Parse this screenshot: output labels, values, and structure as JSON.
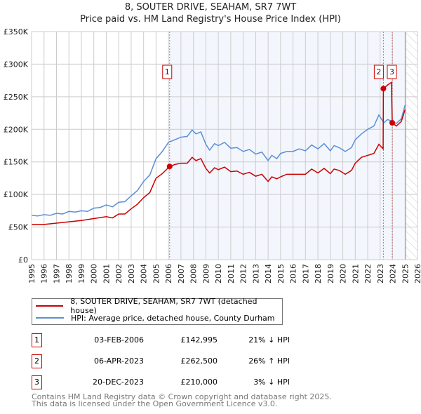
{
  "chart_data": {
    "type": "line",
    "title": "8, SOUTER DRIVE, SEAHAM, SR7 7WT",
    "subtitle": "Price paid vs. HM Land Registry's House Price Index (HPI)",
    "xlim": [
      1995,
      2026
    ],
    "ylim": [
      0,
      350000
    ],
    "x_ticks": [
      "1995",
      "1996",
      "1997",
      "1998",
      "1999",
      "2000",
      "2001",
      "2002",
      "2003",
      "2004",
      "2005",
      "2006",
      "2007",
      "2008",
      "2009",
      "2010",
      "2011",
      "2012",
      "2013",
      "2014",
      "2015",
      "2016",
      "2017",
      "2018",
      "2019",
      "2020",
      "2021",
      "2022",
      "2023",
      "2024",
      "2025",
      "2026"
    ],
    "y_ticks": [
      {
        "v": 0,
        "label": "£0"
      },
      {
        "v": 50000,
        "label": "£50K"
      },
      {
        "v": 100000,
        "label": "£100K"
      },
      {
        "v": 150000,
        "label": "£150K"
      },
      {
        "v": 200000,
        "label": "£200K"
      },
      {
        "v": 250000,
        "label": "£250K"
      },
      {
        "v": 300000,
        "label": "£300K"
      },
      {
        "v": 350000,
        "label": "£350K"
      }
    ],
    "grid": true,
    "shaded_from": 2006.09,
    "forecast_from": 2025.05,
    "series": [
      {
        "name": "8, SOUTER DRIVE, SEAHAM, SR7 7WT (detached house)",
        "color": "#cc0000",
        "x": [
          1995,
          1996,
          1997,
          1998,
          1999,
          2000,
          2001,
          2001.5,
          2002,
          2002.5,
          2003,
          2003.5,
          2004,
          2004.5,
          2005,
          2005.5,
          2006.09,
          2006.5,
          2007,
          2007.5,
          2007.9,
          2008.2,
          2008.6,
          2009,
          2009.3,
          2009.7,
          2010,
          2010.5,
          2011,
          2011.5,
          2012,
          2012.5,
          2013,
          2013.5,
          2014,
          2014.3,
          2014.7,
          2015,
          2015.5,
          2016,
          2016.5,
          2017,
          2017.5,
          2018,
          2018.5,
          2019,
          2019.3,
          2019.7,
          2020.2,
          2020.7,
          2021,
          2021.5,
          2022,
          2022.5,
          2022.9,
          2023.24,
          2023.26,
          2023.6,
          2023.9,
          2023.97,
          2024.3,
          2024.7,
          2025
        ],
        "y": [
          54000,
          54000,
          56000,
          58000,
          60000,
          63000,
          66000,
          64000,
          70000,
          70000,
          78000,
          85000,
          95000,
          103000,
          125000,
          132000,
          142995,
          146000,
          148000,
          148000,
          157000,
          152000,
          155000,
          140000,
          133000,
          141000,
          138000,
          142000,
          135000,
          136000,
          131000,
          134000,
          128000,
          131000,
          120000,
          127000,
          124000,
          127000,
          131000,
          131000,
          131000,
          131000,
          139000,
          133000,
          140000,
          132000,
          139000,
          137000,
          131000,
          137000,
          148000,
          157000,
          160000,
          163000,
          177000,
          170000,
          262500,
          268000,
          272000,
          210000,
          205000,
          212000,
          230000
        ]
      },
      {
        "name": "HPI: Average price, detached house, County Durham",
        "color": "#5b8fd4",
        "x": [
          1995,
          1995.5,
          1996,
          1996.5,
          1997,
          1997.5,
          1998,
          1998.5,
          1999,
          1999.5,
          2000,
          2000.5,
          2001,
          2001.5,
          2002,
          2002.5,
          2003,
          2003.5,
          2004,
          2004.5,
          2005,
          2005.5,
          2006,
          2006.5,
          2007,
          2007.5,
          2007.9,
          2008.2,
          2008.6,
          2009,
          2009.3,
          2009.7,
          2010,
          2010.5,
          2011,
          2011.5,
          2012,
          2012.5,
          2013,
          2013.5,
          2014,
          2014.3,
          2014.7,
          2015,
          2015.5,
          2016,
          2016.5,
          2017,
          2017.5,
          2018,
          2018.5,
          2019,
          2019.3,
          2019.7,
          2020.2,
          2020.7,
          2021,
          2021.5,
          2022,
          2022.5,
          2022.9,
          2023.3,
          2023.6,
          2024,
          2024.3,
          2024.7,
          2025
        ],
        "y": [
          68000,
          67000,
          69000,
          68000,
          71000,
          70000,
          74000,
          73000,
          75000,
          74000,
          79000,
          80000,
          84000,
          81000,
          88000,
          89000,
          98000,
          106000,
          120000,
          130000,
          155000,
          166000,
          180000,
          184000,
          188000,
          189000,
          199000,
          193000,
          196000,
          177000,
          168000,
          178000,
          175000,
          180000,
          171000,
          172000,
          166000,
          169000,
          162000,
          165000,
          152000,
          160000,
          155000,
          163000,
          166000,
          166000,
          170000,
          167000,
          176000,
          170000,
          178000,
          167000,
          175000,
          172000,
          166000,
          172000,
          184000,
          193000,
          200000,
          205000,
          222000,
          210000,
          215000,
          212000,
          209000,
          216000,
          237000
        ]
      }
    ],
    "annotations": [
      {
        "label": "1",
        "x": 2006.09,
        "y": 142995
      },
      {
        "label": "2",
        "x": 2023.26,
        "y": 262500
      },
      {
        "label": "3",
        "x": 2023.97,
        "y": 210000
      }
    ]
  },
  "legend": {
    "property": "8, SOUTER DRIVE, SEAHAM, SR7 7WT (detached house)",
    "hpi": "HPI: Average price, detached house, County Durham"
  },
  "transactions": [
    {
      "num": "1",
      "date": "03-FEB-2006",
      "price": "£142,995",
      "hpi": "21% ↓ HPI"
    },
    {
      "num": "2",
      "date": "06-APR-2023",
      "price": "£262,500",
      "hpi": "26% ↑ HPI"
    },
    {
      "num": "3",
      "date": "20-DEC-2023",
      "price": "£210,000",
      "hpi": "3% ↓ HPI"
    }
  ],
  "footer": {
    "line1": "Contains HM Land Registry data © Crown copyright and database right 2025.",
    "line2": "This data is licensed under the Open Government Licence v3.0."
  }
}
